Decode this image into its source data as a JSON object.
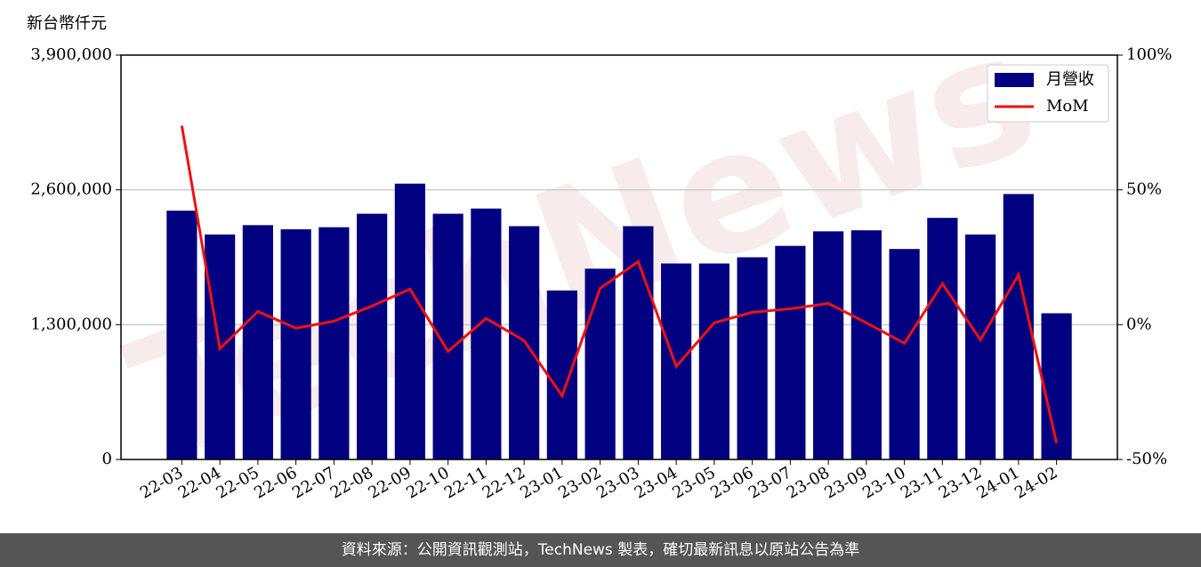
{
  "chart_data": {
    "type": "bar_line",
    "y_label": "新台幣仟元",
    "watermark": "TechNews",
    "footer": "資料來源：公開資訊觀測站，TechNews 製表，確切最新訊息以原站公告為準",
    "categories": [
      "22-03",
      "22-04",
      "22-05",
      "22-06",
      "22-07",
      "22-08",
      "22-09",
      "22-10",
      "22-11",
      "22-12",
      "23-01",
      "23-02",
      "23-03",
      "23-04",
      "23-05",
      "23-06",
      "23-07",
      "23-08",
      "23-09",
      "23-10",
      "23-11",
      "23-12",
      "24-01",
      "24-02"
    ],
    "series": [
      {
        "name": "月營收",
        "color": "#000080",
        "type": "bar",
        "values": [
          2400000,
          2170000,
          2260000,
          2220000,
          2240000,
          2370000,
          2660000,
          2370000,
          2420000,
          2250000,
          1630000,
          1840000,
          2250000,
          1890000,
          1890000,
          1950000,
          2060000,
          2200000,
          2210000,
          2030000,
          2330000,
          2170000,
          2560000,
          1410000
        ]
      },
      {
        "name": "MoM",
        "color": "#ee1111",
        "type": "line",
        "axis": "y2",
        "values": [
          73.8,
          -8.9,
          4.9,
          -1.3,
          1.3,
          6.9,
          13.2,
          -9.9,
          2.3,
          -5.9,
          -26.4,
          13.5,
          23.4,
          -15.5,
          0.7,
          4.6,
          5.9,
          7.9,
          0.7,
          -6.9,
          15.2,
          -5.6,
          18.5,
          -43.9
        ]
      }
    ],
    "ylim": [
      0,
      3900000
    ],
    "yticks": [
      0,
      {
        "value": 1300000,
        "label": "1,300,000"
      },
      {
        "value": 2600000,
        "label": "2,600,000"
      },
      {
        "value": 3900000,
        "label": "3,900,000"
      }
    ],
    "y2lim": [
      -50,
      100
    ],
    "y2ticks": [
      {
        "value": -50,
        "label": "-50%"
      },
      {
        "value": 0,
        "label": "0%"
      },
      {
        "value": 50,
        "label": "50%"
      },
      {
        "value": 100,
        "label": "100%"
      }
    ],
    "grid": true,
    "legend": "upper right"
  }
}
